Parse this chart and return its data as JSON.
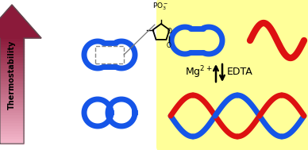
{
  "bg_color": "#ffffff",
  "yellow_box_color": "#ffff99",
  "blue_color": "#1555e8",
  "red_color": "#dd1111",
  "thermo_text": "Thermostability",
  "edta_text": "EDTA",
  "arrow_dark": "#8b1a3a",
  "arrow_light": "#f5c0cc"
}
